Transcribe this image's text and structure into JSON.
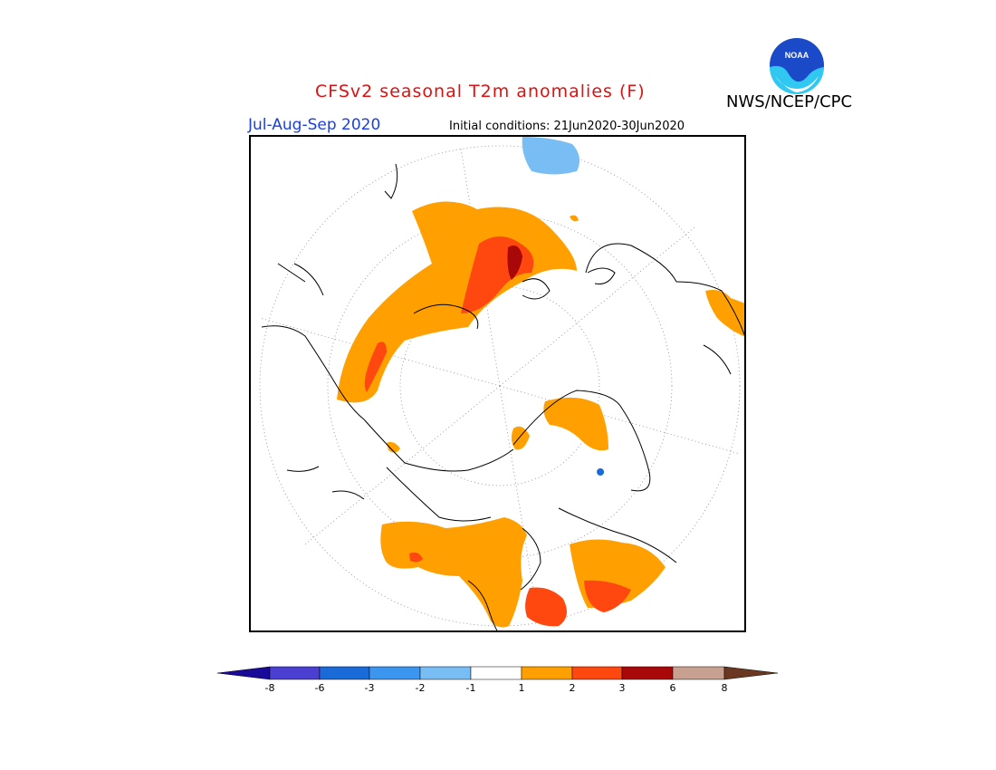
{
  "header": {
    "title": "CFSv2 seasonal T2m anomalies (F)",
    "agency": "NWS/NCEP/CPC",
    "period": "Jul-Aug-Sep 2020",
    "initial_conditions": "Initial conditions: 21Jun2020-30Jun2020",
    "logo_text": "NOAA"
  },
  "legend": {
    "ticks": [
      "-8",
      "-6",
      "-3",
      "-2",
      "-1",
      "1",
      "2",
      "3",
      "6",
      "8"
    ],
    "bins": [
      {
        "range": "<-8",
        "color": "#1a0a9a"
      },
      {
        "range": "-8 to -6",
        "color": "#4a3fd0"
      },
      {
        "range": "-6 to -3",
        "color": "#1a6ad8"
      },
      {
        "range": "-3 to -2",
        "color": "#3c96f0"
      },
      {
        "range": "-2 to -1",
        "color": "#78bef5"
      },
      {
        "range": "-1 to 1",
        "color": "#ffffff"
      },
      {
        "range": "1 to 2",
        "color": "#ffa000"
      },
      {
        "range": "2 to 3",
        "color": "#ff4810"
      },
      {
        "range": "3 to 6",
        "color": "#a80808"
      },
      {
        "range": "6 to 8",
        "color": "#c8a090"
      },
      {
        "range": ">8",
        "color": "#6a3820"
      }
    ]
  },
  "colors": {
    "title": "#e01010",
    "period": "#1a3fe0",
    "noaa_blue": "#1a4ac8",
    "noaa_cyan": "#30c8f0"
  }
}
